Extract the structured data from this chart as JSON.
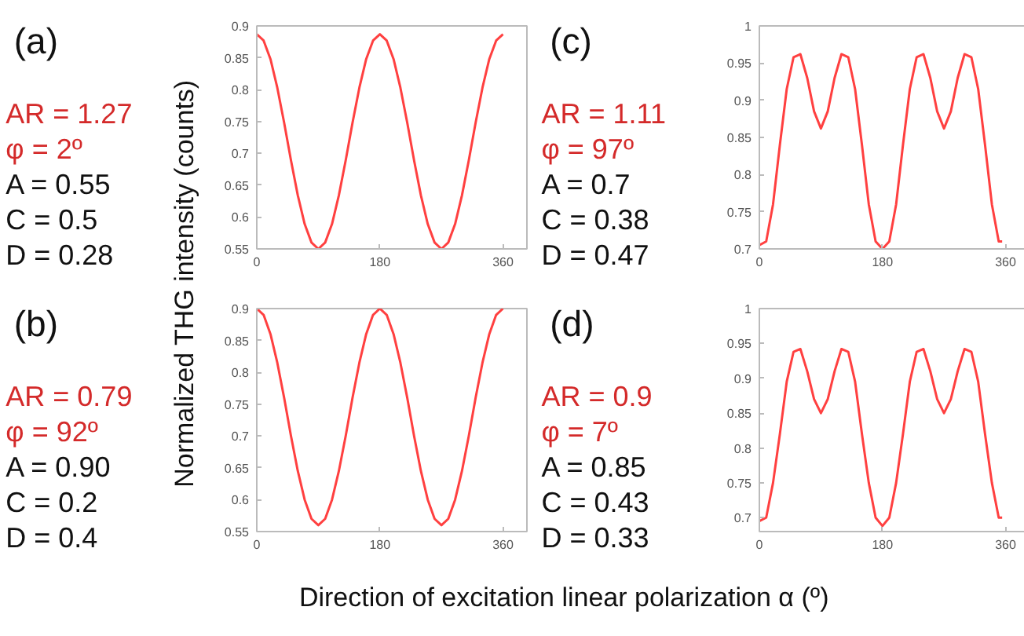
{
  "chart_data": [
    {
      "type": "line",
      "title": "(a)",
      "ylabel": "Normalized THG intensity (counts)",
      "annotations": [
        "AR = 1.27",
        "φ = 2º",
        "A = 0.55",
        "C = 0.5",
        "D = 0.28"
      ],
      "x": [
        0,
        10,
        20,
        30,
        40,
        50,
        60,
        70,
        80,
        90,
        100,
        110,
        120,
        130,
        140,
        150,
        160,
        170,
        180,
        190,
        200,
        210,
        220,
        230,
        240,
        250,
        260,
        270,
        280,
        290,
        300,
        310,
        320,
        330,
        340,
        350,
        360
      ],
      "series": [
        {
          "color": "#ff4040",
          "values": [
            0.887,
            0.877,
            0.848,
            0.803,
            0.748,
            0.689,
            0.634,
            0.589,
            0.56,
            0.55,
            0.56,
            0.589,
            0.634,
            0.689,
            0.748,
            0.803,
            0.848,
            0.877,
            0.887,
            0.877,
            0.848,
            0.803,
            0.748,
            0.689,
            0.634,
            0.589,
            0.56,
            0.55,
            0.56,
            0.589,
            0.634,
            0.689,
            0.748,
            0.803,
            0.848,
            0.877,
            0.887
          ]
        }
      ],
      "xlim": [
        0,
        395
      ],
      "xticks": [
        0,
        180,
        360
      ],
      "ylim": [
        0.55,
        0.9
      ],
      "yticks": [
        0.55,
        0.6,
        0.65,
        0.7,
        0.75,
        0.8,
        0.85,
        0.9
      ],
      "grid": false
    },
    {
      "type": "line",
      "title": "(b)",
      "xlabel": "Direction of excitation linear polarization α (º)",
      "annotations": [
        "AR = 0.79",
        "φ = 92º",
        "A = 0.90",
        "C = 0.2",
        "D = 0.4"
      ],
      "x": [
        0,
        10,
        20,
        30,
        40,
        50,
        60,
        70,
        80,
        90,
        100,
        110,
        120,
        130,
        140,
        150,
        160,
        170,
        180,
        190,
        200,
        210,
        220,
        230,
        240,
        250,
        260,
        270,
        280,
        290,
        300,
        310,
        320,
        330,
        340,
        350,
        360
      ],
      "series": [
        {
          "color": "#ff4040",
          "values": [
            0.9,
            0.89,
            0.86,
            0.815,
            0.76,
            0.7,
            0.645,
            0.6,
            0.57,
            0.56,
            0.57,
            0.6,
            0.645,
            0.7,
            0.76,
            0.815,
            0.86,
            0.89,
            0.9,
            0.89,
            0.86,
            0.815,
            0.76,
            0.7,
            0.645,
            0.6,
            0.57,
            0.56,
            0.57,
            0.6,
            0.645,
            0.7,
            0.76,
            0.815,
            0.86,
            0.89,
            0.9
          ]
        }
      ],
      "xlim": [
        0,
        395
      ],
      "xticks": [
        0,
        180,
        360
      ],
      "ylim": [
        0.55,
        0.9
      ],
      "yticks": [
        0.55,
        0.6,
        0.65,
        0.7,
        0.75,
        0.8,
        0.85,
        0.9
      ],
      "grid": false
    },
    {
      "type": "line",
      "title": "(c)",
      "annotations": [
        "AR = 1.11",
        "φ = 97º",
        "A = 0.7",
        "C = 0.38",
        "D = 0.47"
      ],
      "x": [
        0,
        10,
        20,
        30,
        40,
        50,
        60,
        70,
        80,
        90,
        100,
        110,
        120,
        130,
        140,
        150,
        160,
        170,
        180,
        190,
        200,
        210,
        220,
        230,
        240,
        250,
        260,
        270,
        280,
        290,
        300,
        310,
        320,
        330,
        340,
        350,
        355
      ],
      "series": [
        {
          "color": "#ff4040",
          "values": [
            0.705,
            0.71,
            0.76,
            0.84,
            0.915,
            0.958,
            0.962,
            0.93,
            0.885,
            0.862,
            0.885,
            0.93,
            0.962,
            0.958,
            0.915,
            0.84,
            0.76,
            0.71,
            0.7,
            0.71,
            0.76,
            0.84,
            0.915,
            0.958,
            0.962,
            0.93,
            0.885,
            0.862,
            0.885,
            0.93,
            0.962,
            0.958,
            0.915,
            0.84,
            0.76,
            0.71,
            0.71
          ]
        }
      ],
      "xlim": [
        0,
        395
      ],
      "xticks": [
        0,
        180,
        360
      ],
      "ylim": [
        0.7,
        1
      ],
      "yticks": [
        0.7,
        0.75,
        0.8,
        0.85,
        0.9,
        0.95,
        1
      ],
      "grid": false
    },
    {
      "type": "line",
      "title": "(d)",
      "annotations": [
        "AR = 0.9",
        "φ = 7º",
        "A = 0.85",
        "C = 0.43",
        "D = 0.33"
      ],
      "x": [
        0,
        10,
        20,
        30,
        40,
        50,
        60,
        70,
        80,
        90,
        100,
        110,
        120,
        130,
        140,
        150,
        160,
        170,
        180,
        190,
        200,
        210,
        220,
        230,
        240,
        250,
        260,
        270,
        280,
        290,
        300,
        310,
        320,
        330,
        340,
        350,
        355
      ],
      "series": [
        {
          "color": "#ff4040",
          "values": [
            0.695,
            0.7,
            0.75,
            0.82,
            0.895,
            0.938,
            0.942,
            0.91,
            0.87,
            0.85,
            0.87,
            0.91,
            0.942,
            0.938,
            0.895,
            0.82,
            0.75,
            0.7,
            0.688,
            0.7,
            0.75,
            0.82,
            0.895,
            0.938,
            0.942,
            0.91,
            0.87,
            0.85,
            0.87,
            0.91,
            0.942,
            0.938,
            0.895,
            0.82,
            0.75,
            0.7,
            0.7
          ]
        }
      ],
      "xlim": [
        0,
        395
      ],
      "xticks": [
        0,
        180,
        360
      ],
      "ylim": [
        0.68,
        1
      ],
      "yticks": [
        0.7,
        0.75,
        0.8,
        0.85,
        0.9,
        0.95,
        1
      ],
      "grid": false
    }
  ]
}
